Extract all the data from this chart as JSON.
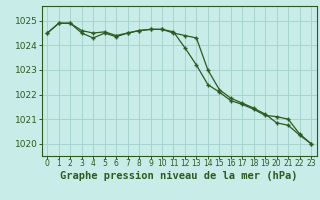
{
  "title": "Graphe pression niveau de la mer (hPa)",
  "bg_color": "#c8ece8",
  "grid_color": "#a8d4d0",
  "line_color": "#2d5a1e",
  "hours": [
    0,
    1,
    2,
    3,
    4,
    5,
    6,
    7,
    8,
    9,
    10,
    11,
    12,
    13,
    14,
    15,
    16,
    17,
    18,
    19,
    20,
    21,
    22,
    23
  ],
  "line1": [
    1024.5,
    1024.9,
    1024.9,
    1024.5,
    1024.3,
    1024.5,
    1024.35,
    1024.5,
    1024.6,
    1024.65,
    1024.65,
    1024.5,
    1024.4,
    1024.3,
    1023.0,
    1022.2,
    1021.85,
    1021.65,
    1021.45,
    1021.2,
    1020.85,
    1020.75,
    1020.35,
    1020.0
  ],
  "line2": [
    1024.5,
    1024.9,
    1024.9,
    1024.6,
    1024.5,
    1024.55,
    1024.4,
    1024.5,
    1024.6,
    1024.65,
    1024.65,
    1024.55,
    1023.9,
    1023.2,
    1022.4,
    1022.1,
    1021.75,
    1021.6,
    1021.4,
    1021.15,
    1021.1,
    1021.0,
    1020.4,
    1020.0
  ],
  "ylim": [
    1019.5,
    1025.6
  ],
  "yticks": [
    1020,
    1021,
    1022,
    1023,
    1024,
    1025
  ],
  "xlim": [
    -0.5,
    23.5
  ],
  "xlabel_fontsize": 7.5,
  "ytick_fontsize": 6.5,
  "xtick_fontsize": 5.5
}
